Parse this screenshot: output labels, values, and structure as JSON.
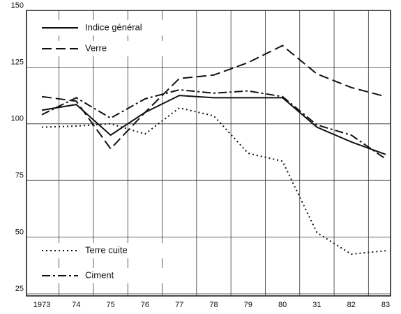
{
  "chart_data": {
    "type": "line",
    "categories": [
      "1973",
      "74",
      "75",
      "76",
      "77",
      "78",
      "79",
      "80",
      "31",
      "82",
      "83"
    ],
    "series": [
      {
        "name": "Indice général",
        "color": "#111111",
        "style": "solid",
        "values": [
          106,
          108.5,
          95,
          105,
          112.5,
          111.5,
          111.5,
          111.5,
          98.5,
          92,
          86.5
        ]
      },
      {
        "name": "Verre",
        "color": "#111111",
        "style": "dashed",
        "values": [
          112,
          110,
          89,
          105,
          120,
          121.5,
          127,
          134.5,
          122,
          116,
          112
        ]
      },
      {
        "name": "Terre cuite",
        "color": "#111111",
        "style": "dotted",
        "values": [
          98.5,
          99,
          100,
          95.5,
          107,
          103.5,
          87,
          83.5,
          52,
          42.5,
          44
        ]
      },
      {
        "name": "Ciment",
        "color": "#111111",
        "style": "dashdot",
        "values": [
          104,
          111.5,
          102.5,
          111,
          115,
          113.5,
          114.5,
          112,
          99.5,
          95,
          84.5
        ]
      }
    ],
    "ylim": [
      25,
      150
    ],
    "yticks": [
      25,
      50,
      75,
      100,
      125,
      150
    ],
    "grid": true
  }
}
